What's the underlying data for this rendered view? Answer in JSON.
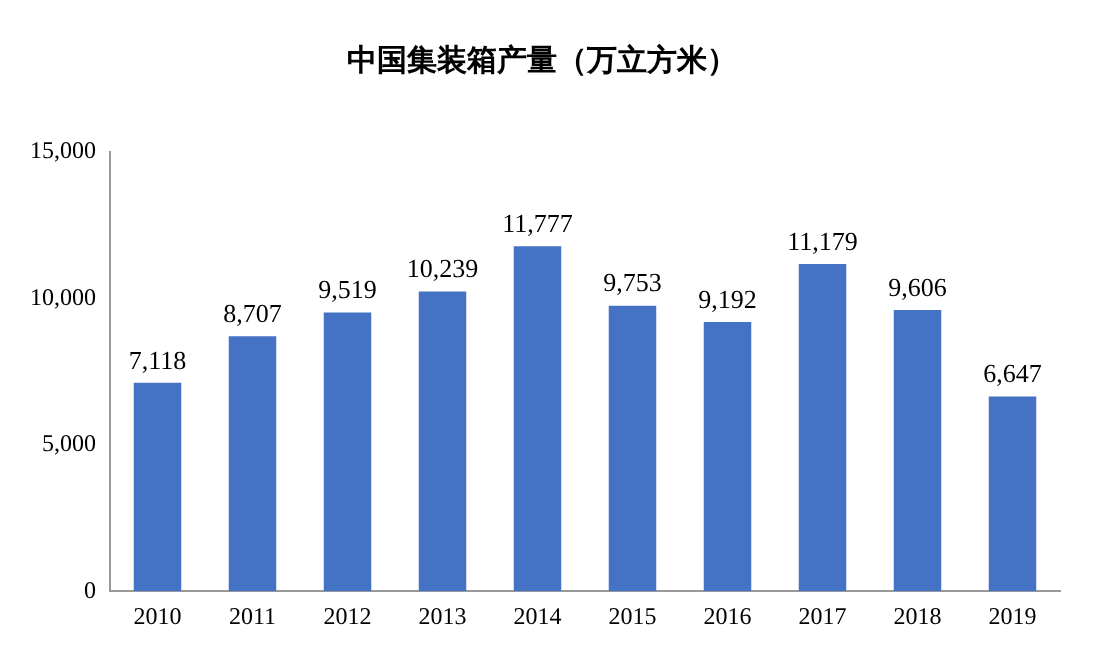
{
  "chart_data": {
    "type": "bar",
    "title": "中国集装箱产量（万立方米）",
    "categories": [
      "2010",
      "2011",
      "2012",
      "2013",
      "2014",
      "2015",
      "2016",
      "2017",
      "2018",
      "2019"
    ],
    "values": [
      7118,
      8707,
      9519,
      10239,
      11777,
      9753,
      9192,
      11179,
      9606,
      6647
    ],
    "value_labels": [
      "7,118",
      "8,707",
      "9,519",
      "10,239",
      "11,777",
      "9,753",
      "9,192",
      "11,179",
      "9,606",
      "6,647"
    ],
    "color": "#4472c4",
    "ylim": [
      0,
      15000
    ],
    "yticks": [
      {
        "value": 0,
        "label": "0"
      },
      {
        "value": 5000,
        "label": "5,000"
      },
      {
        "value": 10000,
        "label": "10,000"
      },
      {
        "value": 15000,
        "label": "15,000"
      }
    ],
    "grid": false,
    "legend": false
  }
}
